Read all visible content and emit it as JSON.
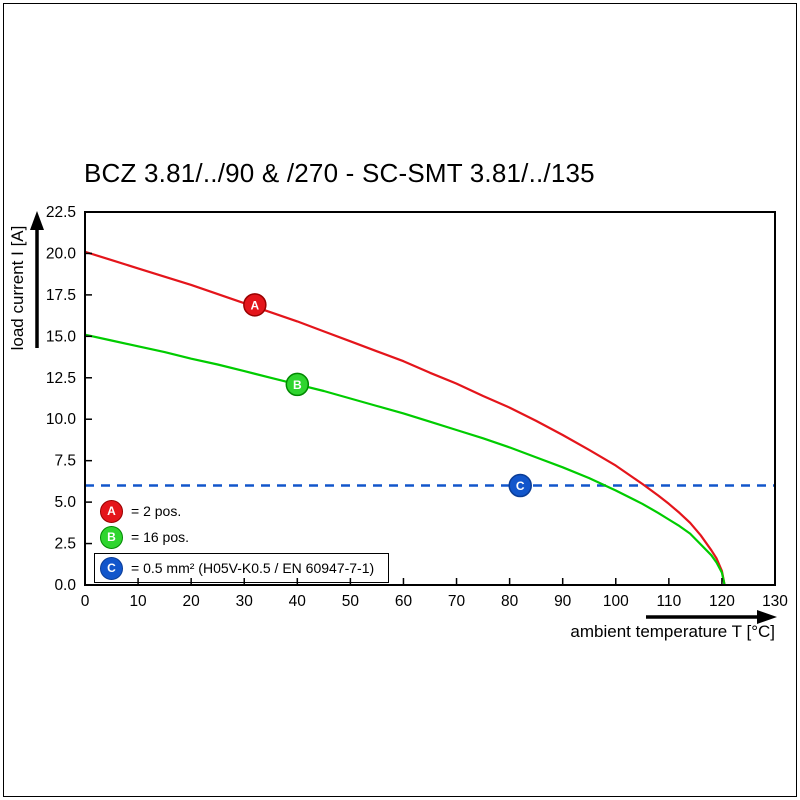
{
  "chart_data": {
    "type": "line",
    "title": "BCZ 3.81/../90 & /270 - SC-SMT 3.81/../135",
    "xlabel": "ambient temperature T [°C]",
    "ylabel": "load current I [A]",
    "xlim": [
      0,
      130
    ],
    "ylim": [
      0,
      22.5
    ],
    "grid": false,
    "legend_position": "bottom-left-inside",
    "x_ticks": {
      "values": [
        0,
        10,
        20,
        30,
        40,
        50,
        60,
        70,
        80,
        90,
        100,
        110,
        120,
        130
      ],
      "labels": [
        "0",
        "10",
        "20",
        "30",
        "40",
        "50",
        "60",
        "70",
        "80",
        "90",
        "100",
        "110",
        "120",
        "130"
      ]
    },
    "y_ticks": {
      "values": [
        0,
        2.5,
        5,
        7.5,
        10,
        12.5,
        15,
        17.5,
        20,
        22.5
      ],
      "labels": [
        "0.0",
        "2.5",
        "5.0",
        "7.5",
        "10.0",
        "12.5",
        "15.0",
        "17.5",
        "20.0",
        "22.5"
      ]
    },
    "series": [
      {
        "name": "A",
        "description": "2 pos.",
        "color": "#e4151b",
        "marker_fill": "#e4151b",
        "marker_border": "#990000",
        "marker": {
          "x": 32,
          "y": 16.9
        },
        "points": [
          [
            0,
            20.1
          ],
          [
            5,
            19.6
          ],
          [
            10,
            19.1
          ],
          [
            15,
            18.6
          ],
          [
            20,
            18.1
          ],
          [
            25,
            17.55
          ],
          [
            30,
            17.0
          ],
          [
            35,
            16.45
          ],
          [
            40,
            15.9
          ],
          [
            45,
            15.3
          ],
          [
            50,
            14.7
          ],
          [
            55,
            14.1
          ],
          [
            60,
            13.5
          ],
          [
            65,
            12.8
          ],
          [
            70,
            12.15
          ],
          [
            75,
            11.4
          ],
          [
            80,
            10.7
          ],
          [
            85,
            9.9
          ],
          [
            90,
            9.05
          ],
          [
            95,
            8.15
          ],
          [
            100,
            7.2
          ],
          [
            105,
            6.1
          ],
          [
            108,
            5.4
          ],
          [
            110,
            4.9
          ],
          [
            112,
            4.35
          ],
          [
            114,
            3.75
          ],
          [
            116,
            3.0
          ],
          [
            118,
            2.1
          ],
          [
            119,
            1.6
          ],
          [
            120,
            0.85
          ],
          [
            120.5,
            0
          ]
        ]
      },
      {
        "name": "B",
        "description": "16 pos.",
        "color": "#00cc00",
        "marker_fill": "#2fd52f",
        "marker_border": "#008800",
        "marker": {
          "x": 40,
          "y": 12.1
        },
        "points": [
          [
            0,
            15.1
          ],
          [
            5,
            14.75
          ],
          [
            10,
            14.4
          ],
          [
            15,
            14.05
          ],
          [
            20,
            13.65
          ],
          [
            25,
            13.3
          ],
          [
            30,
            12.9
          ],
          [
            35,
            12.5
          ],
          [
            40,
            12.1
          ],
          [
            45,
            11.7
          ],
          [
            50,
            11.25
          ],
          [
            55,
            10.8
          ],
          [
            60,
            10.35
          ],
          [
            65,
            9.85
          ],
          [
            70,
            9.35
          ],
          [
            75,
            8.85
          ],
          [
            80,
            8.3
          ],
          [
            85,
            7.7
          ],
          [
            90,
            7.1
          ],
          [
            95,
            6.45
          ],
          [
            100,
            5.7
          ],
          [
            105,
            4.9
          ],
          [
            108,
            4.35
          ],
          [
            110,
            3.95
          ],
          [
            112,
            3.55
          ],
          [
            114,
            3.1
          ],
          [
            116,
            2.45
          ],
          [
            118,
            1.8
          ],
          [
            119,
            1.35
          ],
          [
            120,
            0.75
          ],
          [
            120.5,
            0
          ]
        ]
      }
    ],
    "reference_line": {
      "label": "C",
      "y": 6,
      "color": "#1256cb",
      "style": "dashed",
      "marker_fill": "#1256cb",
      "marker_border": "#0a3c96",
      "marker": {
        "x": 82,
        "y": 6
      }
    },
    "legend": {
      "items": [
        {
          "key": "A",
          "text": "= 2 pos.",
          "fill": "#e4151b",
          "border": "#990000",
          "boxed": false
        },
        {
          "key": "B",
          "text": "= 16 pos.",
          "fill": "#2fd52f",
          "border": "#008800",
          "boxed": false
        },
        {
          "key": "C",
          "text": "= 0.5 mm² (H05V-K0.5 / EN 60947-7-1)",
          "fill": "#1256cb",
          "border": "#0a3c96",
          "boxed": true
        }
      ]
    }
  }
}
